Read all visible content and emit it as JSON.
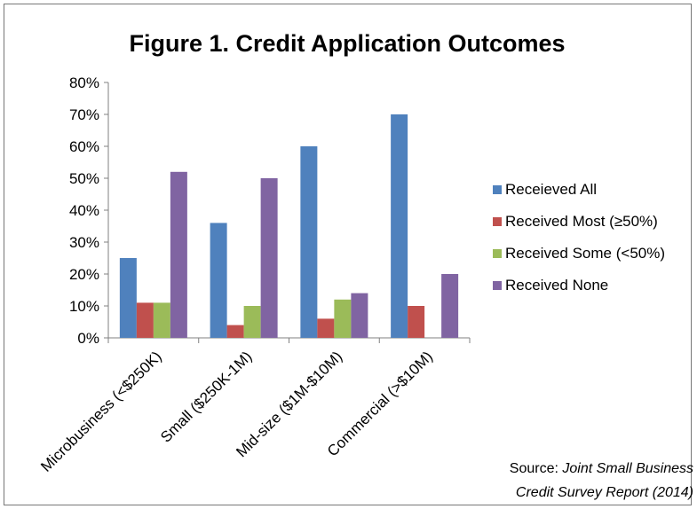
{
  "chart_data": {
    "type": "bar",
    "title": "Figure 1. Credit Application Outcomes",
    "xlabel": "",
    "ylabel": "",
    "ylim": [
      0,
      0.8
    ],
    "yticks": [
      "0%",
      "10%",
      "20%",
      "30%",
      "40%",
      "50%",
      "60%",
      "70%",
      "80%"
    ],
    "categories": [
      "Microbusiness (<$250K)",
      "Small ($250K-1M)",
      "Mid-size ($1M-$10M)",
      "Commercial (>$10M)"
    ],
    "series": [
      {
        "name": "Receieved All",
        "color": "#4F81BD",
        "values": [
          0.25,
          0.36,
          0.6,
          0.7
        ]
      },
      {
        "name": "Received Most (≥50%)",
        "color": "#C0504D",
        "values": [
          0.11,
          0.04,
          0.06,
          0.1
        ]
      },
      {
        "name": "Received Some (<50%)",
        "color": "#9BBB59",
        "values": [
          0.11,
          0.1,
          0.12,
          0.0
        ]
      },
      {
        "name": "Received None",
        "color": "#8064A2",
        "values": [
          0.52,
          0.5,
          0.14,
          0.2
        ]
      }
    ],
    "grid": false,
    "legend_position": "right"
  },
  "source": {
    "prefix": "Source: ",
    "line1": "Joint Small Business",
    "line2": "Credit Survey Report (2014)"
  }
}
